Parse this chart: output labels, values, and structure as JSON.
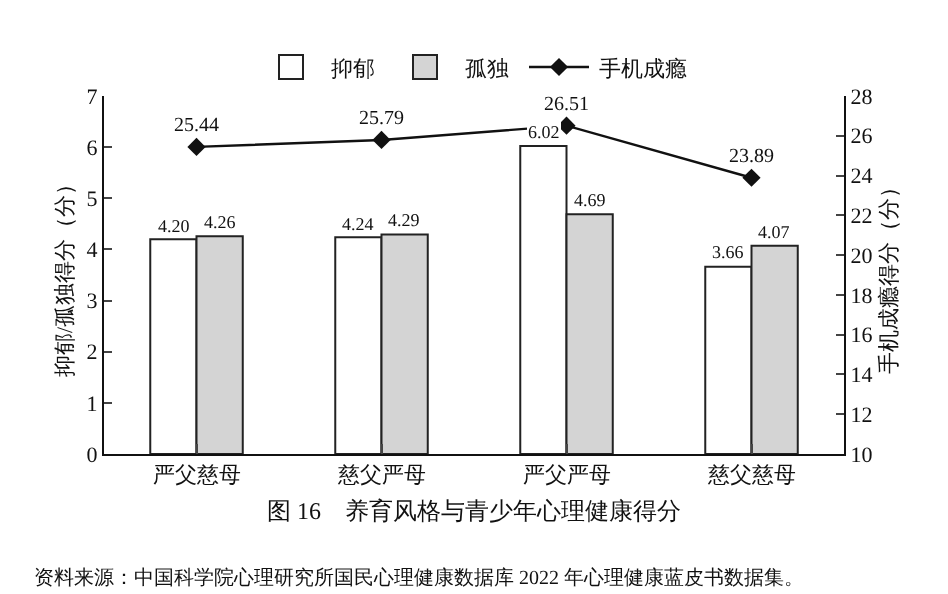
{
  "chart_data": {
    "type": "bar",
    "title": "图 16　养育风格与青少年心理健康得分",
    "categories": [
      "严父慈母",
      "慈父严母",
      "严父严母",
      "慈父慈母"
    ],
    "series": [
      {
        "name": "抑郁",
        "color": "#ffffff",
        "values": [
          4.2,
          4.24,
          6.02,
          3.66
        ],
        "value_labels": [
          "4.20",
          "4.24",
          "6.02",
          "3.66"
        ]
      },
      {
        "name": "孤独",
        "color": "#d4d4d4",
        "values": [
          4.26,
          4.29,
          4.69,
          4.07
        ],
        "value_labels": [
          "4.26",
          "4.29",
          "4.69",
          "4.07"
        ]
      },
      {
        "name": "手机成瘾",
        "type": "line",
        "axis": "y2",
        "color": "#111111",
        "marker": "diamond",
        "values": [
          25.44,
          25.79,
          26.51,
          23.89
        ],
        "value_labels": [
          "25.44",
          "25.79",
          "26.51",
          "23.89"
        ]
      }
    ],
    "ylabel": "抑郁/孤独得分（分）",
    "y2label": "手机成瘾得分（分）",
    "ylim": [
      0,
      7
    ],
    "yticks": [
      0,
      1,
      2,
      3,
      4,
      5,
      6,
      7
    ],
    "y2lim": [
      10,
      28
    ],
    "y2ticks": [
      10,
      12,
      14,
      16,
      18,
      20,
      22,
      24,
      26,
      28
    ],
    "legend": "top",
    "grid": false,
    "annotations": [
      "资料来源：中国科学院心理研究所国民心理健康数据库 2022 年心理健康蓝皮书数据集。"
    ]
  }
}
